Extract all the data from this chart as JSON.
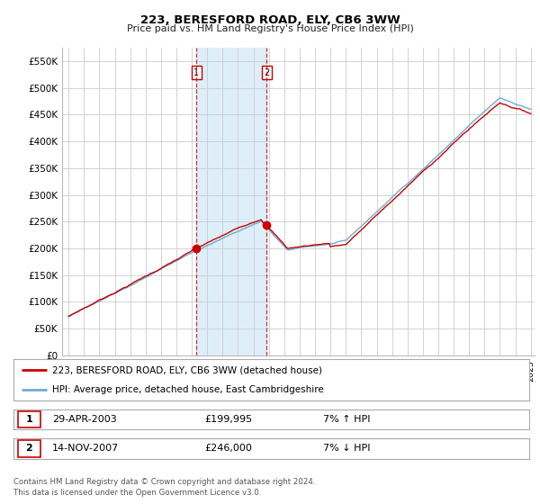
{
  "title": "223, BERESFORD ROAD, ELY, CB6 3WW",
  "subtitle": "Price paid vs. HM Land Registry's House Price Index (HPI)",
  "ylim": [
    0,
    575000
  ],
  "yticks": [
    0,
    50000,
    100000,
    150000,
    200000,
    250000,
    300000,
    350000,
    400000,
    450000,
    500000,
    550000
  ],
  "ytick_labels": [
    "£0",
    "£50K",
    "£100K",
    "£150K",
    "£200K",
    "£250K",
    "£300K",
    "£350K",
    "£400K",
    "£450K",
    "£500K",
    "£550K"
  ],
  "hpi_color": "#6aaed6",
  "price_color": "#cc0000",
  "purchase1_date": 2003.29,
  "purchase1_price": 199995,
  "purchase2_date": 2007.87,
  "purchase2_price": 246000,
  "legend_house_label": "223, BERESFORD ROAD, ELY, CB6 3WW (detached house)",
  "legend_hpi_label": "HPI: Average price, detached house, East Cambridgeshire",
  "table_row1": [
    "1",
    "29-APR-2003",
    "£199,995",
    "7% ↑ HPI"
  ],
  "table_row2": [
    "2",
    "14-NOV-2007",
    "£246,000",
    "7% ↓ HPI"
  ],
  "footer": "Contains HM Land Registry data © Crown copyright and database right 2024.\nThis data is licensed under the Open Government Licence v3.0.",
  "background_color": "#ffffff",
  "grid_color": "#cccccc",
  "shaded_region_color": "#ddeef8"
}
